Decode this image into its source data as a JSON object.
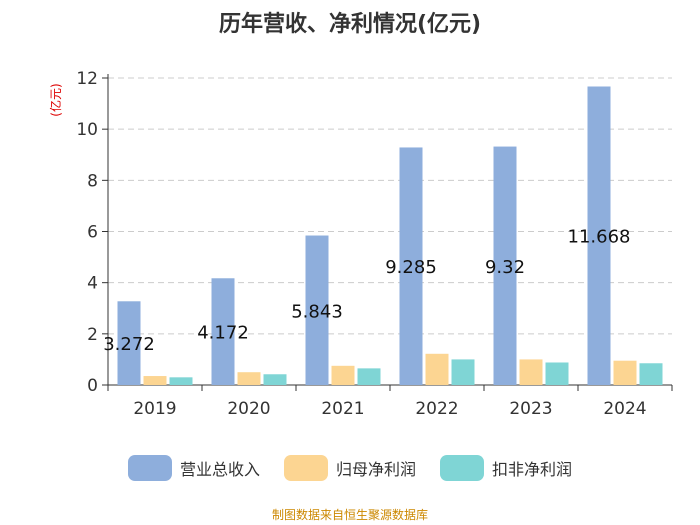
{
  "chart_data": {
    "type": "bar",
    "title": "历年营收、净利情况(亿元)",
    "ylabel": "(亿元)",
    "xlabel": "",
    "categories": [
      "2019",
      "2020",
      "2021",
      "2022",
      "2023",
      "2024"
    ],
    "ylim": [
      0,
      12
    ],
    "yticks": [
      0,
      2,
      4,
      6,
      8,
      10,
      12
    ],
    "grid": true,
    "legend_position": "bottom",
    "series": [
      {
        "name": "营业总收入",
        "color": "#8eaedc",
        "values": [
          3.272,
          4.172,
          5.843,
          9.285,
          9.32,
          11.668
        ],
        "labels": [
          "3.272",
          "4.172",
          "5.843",
          "9.285",
          "9.32",
          "11.668"
        ]
      },
      {
        "name": "归母净利润",
        "color": "#fcd592",
        "values": [
          0.35,
          0.5,
          0.75,
          1.22,
          1.0,
          0.95
        ]
      },
      {
        "name": "扣非净利润",
        "color": "#7fd5d5",
        "values": [
          0.3,
          0.42,
          0.65,
          1.0,
          0.88,
          0.85
        ]
      }
    ]
  },
  "footer": {
    "source": "制图数据来自恒生聚源数据库"
  }
}
